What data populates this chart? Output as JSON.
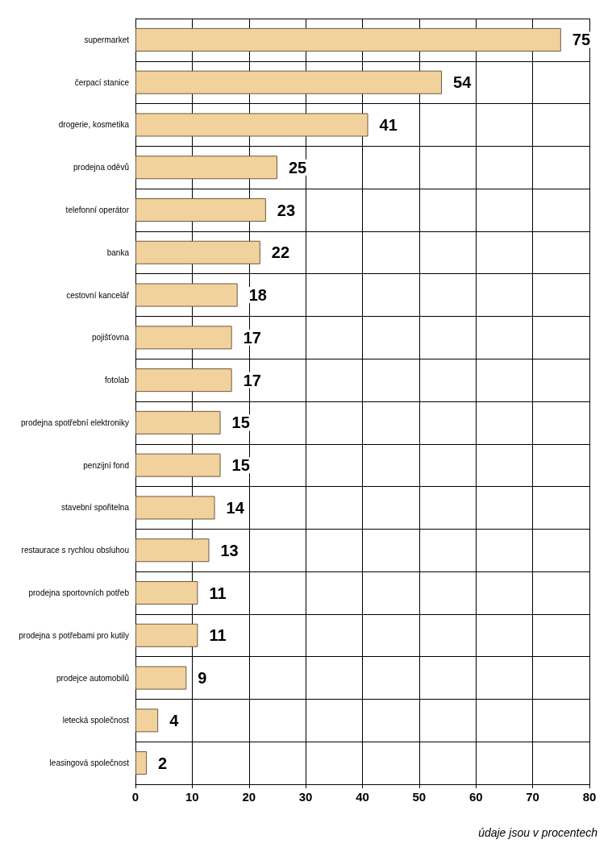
{
  "chart_data": {
    "type": "bar",
    "orientation": "horizontal",
    "categories": [
      "supermarket",
      "čerpací stanice",
      "drogerie, kosmetika",
      "prodejna oděvů",
      "telefonní operátor",
      "banka",
      "cestovní kancelář",
      "pojišťovna",
      "fotolab",
      "prodejna spotřební elektroniky",
      "penzijní fond",
      "stavební spořitelna",
      "restaurace s rychlou obsluhou",
      "prodejna sportovních potřeb",
      "prodejna s potřebami pro kutily",
      "prodejce automobilů",
      "letecká společnost",
      "leasingová společnost"
    ],
    "values": [
      75,
      54,
      41,
      25,
      23,
      22,
      18,
      17,
      17,
      15,
      15,
      14,
      13,
      11,
      11,
      9,
      4,
      2
    ],
    "color": "#f2d29c",
    "xlim": [
      0,
      80
    ],
    "xticks": [
      0,
      10,
      20,
      30,
      40,
      50,
      60,
      70,
      80
    ],
    "grid": true,
    "data_labels": true,
    "annotations": [
      "údaje jsou v procentech"
    ]
  }
}
